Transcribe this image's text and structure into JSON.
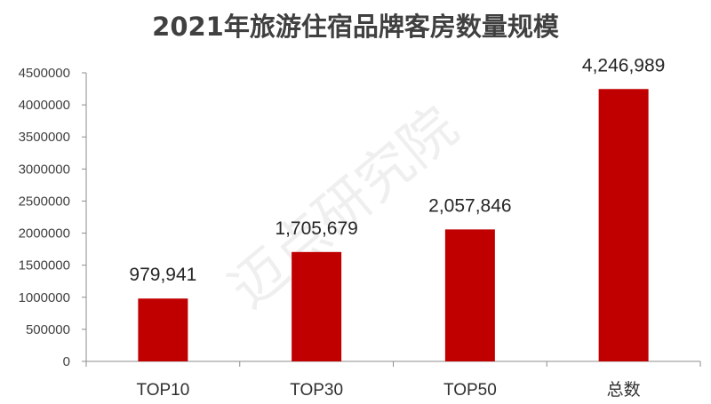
{
  "chart_data": {
    "type": "bar",
    "title": "2021年旅游住宿品牌客房数量规模",
    "categories": [
      "TOP10",
      "TOP30",
      "TOP50",
      "总数"
    ],
    "values": [
      979941,
      1705679,
      2057846,
      4246989
    ],
    "data_labels": [
      "979,941",
      "1,705,679",
      "2,057,846",
      "4,246,989"
    ],
    "yticks": [
      "0",
      "500000",
      "1000000",
      "1500000",
      "2000000",
      "2500000",
      "3000000",
      "3500000",
      "4000000",
      "4500000"
    ],
    "ylim": [
      0,
      4500000
    ],
    "xlabel": "",
    "ylabel": "",
    "bar_color": "#C00000",
    "grid": false,
    "legend": "none"
  },
  "watermark": "迈点研究院"
}
